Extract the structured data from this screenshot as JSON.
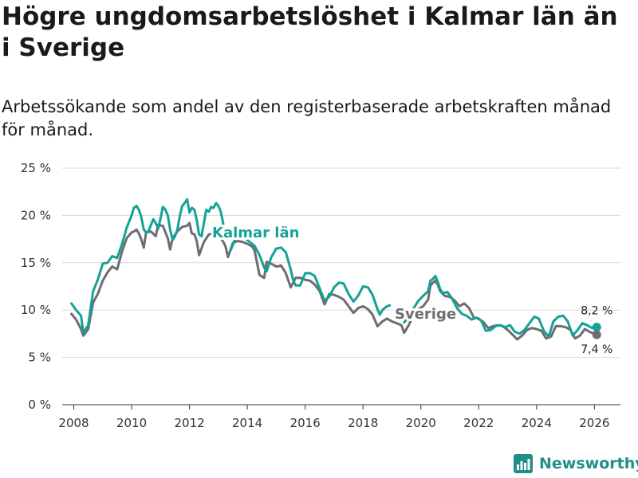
{
  "title": "Högre ungdomsarbetslöshet i Kalmar län än i Sverige",
  "subtitle": "Arbetssökande som andel av den registerbaserade arbetskraften månad för månad.",
  "brand": {
    "name": "Newsworthy",
    "icon": "bar-chart-logo-icon"
  },
  "colors": {
    "kalmar": "#13a295",
    "sverige": "#6f6b70",
    "grid": "#d9d9d9",
    "brand": "#1f8f88"
  },
  "chart_data": {
    "type": "line",
    "title": "Högre ungdomsarbetslöshet i Kalmar län än i Sverige",
    "subtitle": "Arbetssökande som andel av den registerbaserade arbetskraften månad för månad.",
    "xlabel": "",
    "ylabel": "",
    "xlim": [
      2007.6,
      2026.9
    ],
    "ylim": [
      0,
      25
    ],
    "y_ticks": [
      0,
      5,
      10,
      15,
      20,
      25
    ],
    "y_tick_labels": [
      "0 %",
      "5 %",
      "10 %",
      "15 %",
      "20 %",
      "25 %"
    ],
    "x_ticks": [
      2008,
      2010,
      2012,
      2014,
      2016,
      2018,
      2020,
      2022,
      2024,
      2026
    ],
    "x_tick_labels": [
      "2008",
      "2010",
      "2012",
      "2014",
      "2016",
      "2018",
      "2020",
      "2022",
      "2024",
      "2026"
    ],
    "grid": true,
    "legend": "direct labels on lines",
    "series": [
      {
        "name": "Kalmar län",
        "color": "#13a295",
        "end_label": "8,2 %",
        "points": [
          [
            2007.92,
            10.7
          ],
          [
            2008.08,
            10.0
          ],
          [
            2008.25,
            9.4
          ],
          [
            2008.33,
            7.6
          ],
          [
            2008.5,
            8.4
          ],
          [
            2008.67,
            12.0
          ],
          [
            2008.83,
            13.2
          ],
          [
            2009.0,
            14.9
          ],
          [
            2009.17,
            15.0
          ],
          [
            2009.33,
            15.7
          ],
          [
            2009.5,
            15.5
          ],
          [
            2009.67,
            17.0
          ],
          [
            2009.83,
            18.7
          ],
          [
            2010.0,
            20.0
          ],
          [
            2010.08,
            20.8
          ],
          [
            2010.17,
            21.0
          ],
          [
            2010.25,
            20.6
          ],
          [
            2010.33,
            19.9
          ],
          [
            2010.42,
            18.5
          ],
          [
            2010.5,
            18.2
          ],
          [
            2010.58,
            18.3
          ],
          [
            2010.67,
            19.0
          ],
          [
            2010.75,
            19.6
          ],
          [
            2010.83,
            19.2
          ],
          [
            2010.92,
            18.6
          ],
          [
            2011.0,
            19.7
          ],
          [
            2011.08,
            20.9
          ],
          [
            2011.17,
            20.6
          ],
          [
            2011.25,
            20.0
          ],
          [
            2011.33,
            18.5
          ],
          [
            2011.42,
            17.4
          ],
          [
            2011.5,
            17.8
          ],
          [
            2011.58,
            18.5
          ],
          [
            2011.67,
            20.0
          ],
          [
            2011.75,
            21.0
          ],
          [
            2011.83,
            21.3
          ],
          [
            2011.92,
            21.7
          ],
          [
            2012.0,
            20.3
          ],
          [
            2012.08,
            20.8
          ],
          [
            2012.17,
            20.6
          ],
          [
            2012.25,
            19.5
          ],
          [
            2012.33,
            18.0
          ],
          [
            2012.42,
            17.8
          ],
          [
            2012.5,
            19.2
          ],
          [
            2012.58,
            20.6
          ],
          [
            2012.67,
            20.4
          ],
          [
            2012.75,
            20.9
          ],
          [
            2012.83,
            20.8
          ],
          [
            2012.92,
            21.3
          ],
          [
            2013.0,
            21.0
          ],
          [
            2013.08,
            20.4
          ],
          [
            2013.17,
            19.1
          ]
        ],
        "points_b": [
          [
            2013.42,
            16.3
          ],
          [
            2013.58,
            17.5
          ],
          [
            2013.75,
            17.9
          ],
          [
            2013.92,
            17.6
          ],
          [
            2014.08,
            17.2
          ],
          [
            2014.25,
            16.8
          ],
          [
            2014.42,
            15.8
          ],
          [
            2014.58,
            14.5
          ],
          [
            2014.67,
            14.1
          ],
          [
            2014.83,
            15.6
          ],
          [
            2015.0,
            16.5
          ],
          [
            2015.17,
            16.6
          ],
          [
            2015.33,
            16.1
          ],
          [
            2015.5,
            14.3
          ],
          [
            2015.58,
            13.2
          ],
          [
            2015.67,
            12.6
          ],
          [
            2015.83,
            12.6
          ],
          [
            2016.0,
            13.9
          ],
          [
            2016.17,
            13.9
          ],
          [
            2016.33,
            13.6
          ],
          [
            2016.5,
            12.3
          ],
          [
            2016.67,
            11.0
          ],
          [
            2016.83,
            11.4
          ],
          [
            2017.0,
            12.4
          ],
          [
            2017.17,
            12.9
          ],
          [
            2017.33,
            12.8
          ],
          [
            2017.5,
            11.7
          ],
          [
            2017.67,
            10.9
          ],
          [
            2017.83,
            11.5
          ],
          [
            2018.0,
            12.5
          ],
          [
            2018.17,
            12.4
          ],
          [
            2018.33,
            11.6
          ],
          [
            2018.5,
            10.1
          ],
          [
            2018.58,
            9.5
          ],
          [
            2018.67,
            10.0
          ],
          [
            2018.83,
            10.4
          ],
          [
            2018.92,
            10.5
          ]
        ],
        "points_c": [
          [
            2019.42,
            8.7
          ],
          [
            2019.58,
            9.2
          ],
          [
            2019.75,
            10.2
          ],
          [
            2019.92,
            11.0
          ],
          [
            2020.08,
            11.5
          ],
          [
            2020.25,
            12.0
          ],
          [
            2020.33,
            13.1
          ],
          [
            2020.42,
            13.3
          ],
          [
            2020.5,
            13.6
          ],
          [
            2020.58,
            13.0
          ],
          [
            2020.67,
            12.2
          ],
          [
            2020.75,
            11.8
          ],
          [
            2020.92,
            11.9
          ],
          [
            2021.08,
            11.2
          ],
          [
            2021.25,
            10.2
          ],
          [
            2021.42,
            9.6
          ],
          [
            2021.58,
            9.4
          ],
          [
            2021.75,
            9.0
          ],
          [
            2021.92,
            9.2
          ],
          [
            2022.08,
            8.9
          ],
          [
            2022.25,
            7.8
          ],
          [
            2022.42,
            7.9
          ],
          [
            2022.58,
            8.3
          ],
          [
            2022.75,
            8.4
          ],
          [
            2022.92,
            8.2
          ],
          [
            2023.08,
            8.4
          ],
          [
            2023.25,
            7.7
          ],
          [
            2023.42,
            7.5
          ],
          [
            2023.58,
            7.9
          ],
          [
            2023.75,
            8.6
          ],
          [
            2023.92,
            9.3
          ],
          [
            2024.08,
            9.1
          ],
          [
            2024.25,
            7.8
          ],
          [
            2024.42,
            7.2
          ],
          [
            2024.58,
            8.8
          ],
          [
            2024.75,
            9.3
          ],
          [
            2024.92,
            9.4
          ],
          [
            2025.08,
            8.8
          ],
          [
            2025.25,
            7.3
          ],
          [
            2025.42,
            7.9
          ],
          [
            2025.58,
            8.6
          ],
          [
            2025.75,
            8.4
          ],
          [
            2025.92,
            8.1
          ],
          [
            2026.08,
            8.2
          ]
        ]
      },
      {
        "name": "Sverige",
        "color": "#6f6b70",
        "end_label": "7,4 %",
        "points": [
          [
            2007.92,
            9.6
          ],
          [
            2008.08,
            9.0
          ],
          [
            2008.25,
            8.0
          ],
          [
            2008.33,
            7.3
          ],
          [
            2008.5,
            8.0
          ],
          [
            2008.67,
            10.8
          ],
          [
            2008.83,
            11.7
          ],
          [
            2009.0,
            13.1
          ],
          [
            2009.17,
            14.0
          ],
          [
            2009.33,
            14.6
          ],
          [
            2009.5,
            14.3
          ],
          [
            2009.67,
            16.2
          ],
          [
            2009.83,
            17.6
          ],
          [
            2010.0,
            18.2
          ],
          [
            2010.08,
            18.3
          ],
          [
            2010.17,
            18.5
          ],
          [
            2010.25,
            18.1
          ],
          [
            2010.33,
            17.5
          ],
          [
            2010.42,
            16.6
          ],
          [
            2010.5,
            18.2
          ],
          [
            2010.67,
            18.3
          ],
          [
            2010.83,
            17.8
          ],
          [
            2010.92,
            19.0
          ],
          [
            2011.08,
            18.9
          ],
          [
            2011.17,
            18.2
          ],
          [
            2011.25,
            17.6
          ],
          [
            2011.33,
            16.4
          ],
          [
            2011.42,
            17.6
          ],
          [
            2011.58,
            18.3
          ],
          [
            2011.75,
            18.8
          ],
          [
            2011.92,
            18.9
          ],
          [
            2012.0,
            19.2
          ],
          [
            2012.08,
            18.1
          ],
          [
            2012.17,
            18.0
          ],
          [
            2012.25,
            17.3
          ],
          [
            2012.33,
            15.8
          ],
          [
            2012.5,
            17.2
          ],
          [
            2012.67,
            18.0
          ],
          [
            2012.83,
            18.1
          ],
          [
            2013.0,
            17.8
          ],
          [
            2013.08,
            17.6
          ],
          [
            2013.17,
            17.2
          ],
          [
            2013.25,
            16.7
          ],
          [
            2013.33,
            15.6
          ],
          [
            2013.5,
            17.1
          ],
          [
            2013.67,
            17.3
          ],
          [
            2013.83,
            17.2
          ],
          [
            2014.0,
            17.0
          ],
          [
            2014.17,
            16.7
          ],
          [
            2014.25,
            16.3
          ],
          [
            2014.42,
            13.7
          ],
          [
            2014.58,
            13.4
          ],
          [
            2014.67,
            15.1
          ],
          [
            2014.83,
            14.9
          ],
          [
            2015.0,
            14.6
          ],
          [
            2015.17,
            14.7
          ],
          [
            2015.33,
            13.9
          ],
          [
            2015.5,
            12.4
          ],
          [
            2015.67,
            13.4
          ],
          [
            2015.83,
            13.4
          ],
          [
            2016.0,
            13.2
          ],
          [
            2016.17,
            13.1
          ],
          [
            2016.33,
            12.7
          ],
          [
            2016.5,
            12.0
          ],
          [
            2016.67,
            10.6
          ],
          [
            2016.83,
            11.7
          ],
          [
            2017.0,
            11.6
          ],
          [
            2017.17,
            11.4
          ],
          [
            2017.33,
            11.1
          ],
          [
            2017.5,
            10.4
          ],
          [
            2017.67,
            9.7
          ],
          [
            2017.83,
            10.2
          ],
          [
            2018.0,
            10.4
          ],
          [
            2018.17,
            10.1
          ],
          [
            2018.33,
            9.5
          ],
          [
            2018.5,
            8.3
          ],
          [
            2018.67,
            8.8
          ],
          [
            2018.83,
            9.1
          ],
          [
            2019.0,
            8.8
          ],
          [
            2019.17,
            8.6
          ],
          [
            2019.33,
            8.4
          ],
          [
            2019.42,
            7.6
          ],
          [
            2019.58,
            8.4
          ],
          [
            2019.75,
            9.5
          ],
          [
            2019.92,
            10.1
          ],
          [
            2020.08,
            10.4
          ],
          [
            2020.25,
            11.1
          ],
          [
            2020.33,
            12.6
          ],
          [
            2020.42,
            12.9
          ],
          [
            2020.5,
            13.1
          ],
          [
            2020.58,
            12.7
          ],
          [
            2020.67,
            12.0
          ],
          [
            2020.83,
            11.5
          ],
          [
            2021.0,
            11.4
          ],
          [
            2021.17,
            11.0
          ],
          [
            2021.33,
            10.4
          ],
          [
            2021.5,
            10.7
          ],
          [
            2021.67,
            10.2
          ],
          [
            2021.83,
            9.2
          ],
          [
            2022.0,
            9.1
          ],
          [
            2022.17,
            8.7
          ],
          [
            2022.33,
            8.1
          ],
          [
            2022.5,
            8.3
          ],
          [
            2022.67,
            8.4
          ],
          [
            2022.83,
            8.3
          ],
          [
            2023.0,
            7.9
          ],
          [
            2023.17,
            7.4
          ],
          [
            2023.33,
            6.9
          ],
          [
            2023.5,
            7.3
          ],
          [
            2023.67,
            7.9
          ],
          [
            2023.83,
            8.1
          ],
          [
            2024.0,
            8.0
          ],
          [
            2024.17,
            7.8
          ],
          [
            2024.33,
            7.0
          ],
          [
            2024.5,
            7.2
          ],
          [
            2024.67,
            8.3
          ],
          [
            2024.83,
            8.3
          ],
          [
            2025.0,
            8.2
          ],
          [
            2025.17,
            7.9
          ],
          [
            2025.33,
            7.0
          ],
          [
            2025.5,
            7.3
          ],
          [
            2025.67,
            8.0
          ],
          [
            2025.83,
            7.7
          ],
          [
            2026.08,
            7.4
          ]
        ]
      }
    ]
  }
}
